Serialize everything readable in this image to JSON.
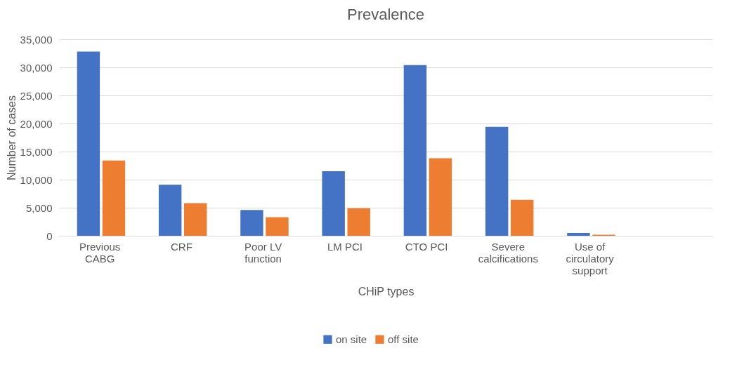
{
  "chart_data": {
    "type": "bar",
    "title": "Prevalence",
    "xlabel": "CHiP types",
    "ylabel": "Number of cases",
    "categories": [
      "Previous CABG",
      "CRF",
      "Poor LV function",
      "LM PCI",
      "CTO PCI",
      "Severe calcifications",
      "Use of circulatory support",
      null
    ],
    "series": [
      {
        "name": "on site",
        "color": "#4472c4",
        "values": [
          32800,
          9100,
          4600,
          11500,
          30400,
          19400,
          500,
          null
        ]
      },
      {
        "name": "off site",
        "color": "#ed7d31",
        "values": [
          13400,
          5800,
          3300,
          4900,
          13800,
          6400,
          200,
          null
        ]
      }
    ],
    "ylim": [
      0,
      35000
    ],
    "yticks": [
      0,
      {
        "value": 5000,
        "label": "5,000"
      },
      {
        "value": 10000,
        "label": "10,000"
      },
      {
        "value": 15000,
        "label": "15,000"
      },
      {
        "value": 20000,
        "label": "20,000"
      },
      {
        "value": 25000,
        "label": "25,000"
      },
      {
        "value": 30000,
        "label": "30,000"
      },
      {
        "value": 35000,
        "label": "35,000"
      }
    ],
    "grid": "y",
    "legend": "bottom"
  }
}
